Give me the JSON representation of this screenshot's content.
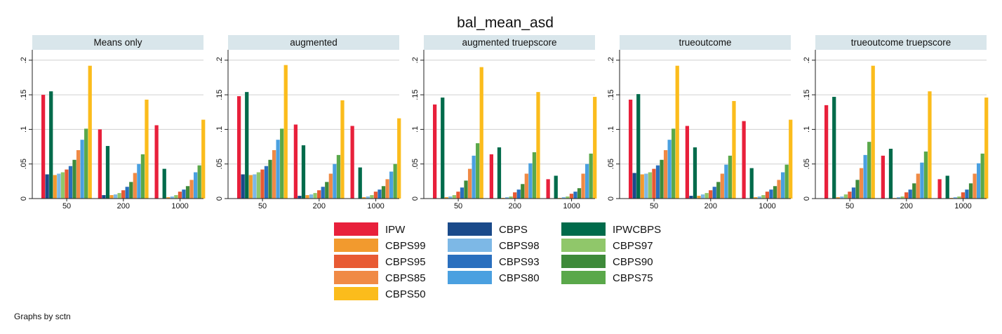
{
  "chart_data": {
    "type": "bar",
    "title": "bal_mean_asd",
    "note": "Graphs by sctn",
    "y_ticks": [
      0,
      0.05,
      0.1,
      0.15,
      0.2
    ],
    "y_tick_labels": [
      "0",
      ".05",
      ".1",
      ".15",
      ".2"
    ],
    "ylim": [
      0,
      0.215
    ],
    "grid": true,
    "legend_position": "bottom",
    "categories": [
      "50",
      "200",
      "1000"
    ],
    "series": [
      {
        "name": "IPW",
        "color": "#e8203b"
      },
      {
        "name": "CBPS",
        "color": "#1a4a8a"
      },
      {
        "name": "IPWCBPS",
        "color": "#006b4b"
      },
      {
        "name": "CBPS99",
        "color": "#f29a2e"
      },
      {
        "name": "CBPS98",
        "color": "#7db8e6"
      },
      {
        "name": "CBPS97",
        "color": "#90c76a"
      },
      {
        "name": "CBPS95",
        "color": "#e85a33"
      },
      {
        "name": "CBPS93",
        "color": "#2a6fbe"
      },
      {
        "name": "CBPS90",
        "color": "#3e8a3a"
      },
      {
        "name": "CBPS85",
        "color": "#f08a45"
      },
      {
        "name": "CBPS80",
        "color": "#4aa0e0"
      },
      {
        "name": "CBPS75",
        "color": "#5aa84a"
      },
      {
        "name": "CBPS50",
        "color": "#fbbc1c"
      }
    ],
    "bar_order": [
      "IPW",
      "CBPS",
      "IPWCBPS",
      "CBPS99",
      "CBPS98",
      "CBPS97",
      "CBPS95",
      "CBPS93",
      "CBPS90",
      "CBPS85",
      "CBPS80",
      "CBPS75",
      "CBPS50"
    ],
    "panels": [
      {
        "title": "Means only",
        "values": [
          [
            0.15,
            0.035,
            0.155,
            0.034,
            0.036,
            0.038,
            0.042,
            0.047,
            0.056,
            0.07,
            0.085,
            0.101,
            0.192
          ],
          [
            0.1,
            0.005,
            0.076,
            0.005,
            0.006,
            0.008,
            0.012,
            0.017,
            0.024,
            0.037,
            0.05,
            0.064,
            0.143
          ],
          [
            0.106,
            0.0,
            0.043,
            0.002,
            0.003,
            0.005,
            0.01,
            0.013,
            0.018,
            0.027,
            0.038,
            0.048,
            0.114
          ]
        ]
      },
      {
        "title": "augmented",
        "values": [
          [
            0.148,
            0.035,
            0.154,
            0.034,
            0.035,
            0.038,
            0.042,
            0.047,
            0.056,
            0.07,
            0.085,
            0.101,
            0.193
          ],
          [
            0.107,
            0.004,
            0.077,
            0.005,
            0.006,
            0.008,
            0.012,
            0.017,
            0.024,
            0.036,
            0.05,
            0.063,
            0.142
          ],
          [
            0.105,
            0.0,
            0.045,
            0.002,
            0.003,
            0.005,
            0.01,
            0.013,
            0.018,
            0.028,
            0.039,
            0.05,
            0.116
          ]
        ]
      },
      {
        "title": "augmented truepscore",
        "values": [
          [
            0.136,
            0.0,
            0.146,
            0.002,
            0.003,
            0.005,
            0.01,
            0.016,
            0.026,
            0.043,
            0.062,
            0.08,
            0.19
          ],
          [
            0.064,
            0.0,
            0.074,
            0.001,
            0.002,
            0.003,
            0.009,
            0.013,
            0.021,
            0.036,
            0.051,
            0.067,
            0.154
          ],
          [
            0.028,
            0.0,
            0.033,
            0.001,
            0.002,
            0.003,
            0.007,
            0.01,
            0.015,
            0.036,
            0.05,
            0.065,
            0.147
          ]
        ]
      },
      {
        "title": "trueoutcome",
        "values": [
          [
            0.143,
            0.037,
            0.151,
            0.035,
            0.036,
            0.038,
            0.043,
            0.048,
            0.056,
            0.07,
            0.085,
            0.101,
            0.192
          ],
          [
            0.105,
            0.004,
            0.074,
            0.004,
            0.006,
            0.008,
            0.012,
            0.017,
            0.024,
            0.036,
            0.049,
            0.062,
            0.141
          ],
          [
            0.112,
            0.0,
            0.044,
            0.002,
            0.003,
            0.005,
            0.01,
            0.013,
            0.018,
            0.027,
            0.038,
            0.049,
            0.114
          ]
        ]
      },
      {
        "title": "trueoutcome truepscore",
        "values": [
          [
            0.135,
            0.0,
            0.147,
            0.002,
            0.003,
            0.006,
            0.01,
            0.016,
            0.027,
            0.044,
            0.063,
            0.082,
            0.192
          ],
          [
            0.062,
            0.0,
            0.072,
            0.001,
            0.002,
            0.003,
            0.009,
            0.013,
            0.022,
            0.036,
            0.052,
            0.068,
            0.155
          ],
          [
            0.028,
            0.0,
            0.033,
            0.001,
            0.002,
            0.003,
            0.009,
            0.013,
            0.022,
            0.036,
            0.051,
            0.065,
            0.146
          ]
        ]
      }
    ]
  }
}
